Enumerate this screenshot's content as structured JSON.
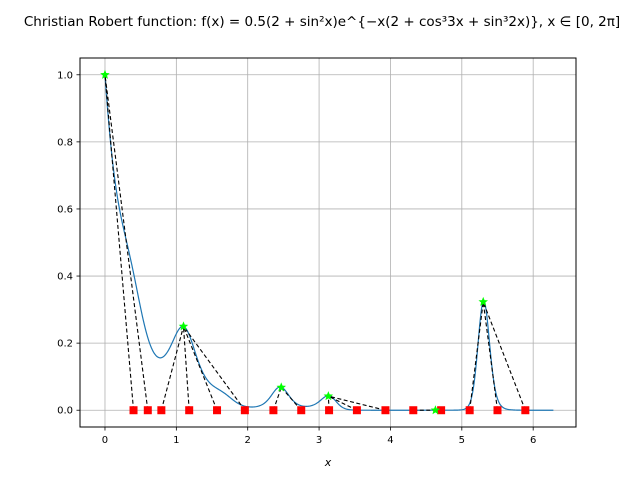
{
  "chart_data": {
    "type": "line",
    "title": "Christian Robert function: f(x) = 0.5(2 + sin²x)e^{−x(2 + cos³3x + sin³2x)}, x ∈ [0, 2π]",
    "xlabel": "x",
    "ylabel": "",
    "xlim": [
      -0.35,
      6.6
    ],
    "ylim": [
      -0.05,
      1.05
    ],
    "xticks": [
      0,
      1,
      2,
      3,
      4,
      5,
      6
    ],
    "yticks": [
      0.0,
      0.2,
      0.4,
      0.6,
      0.8,
      1.0
    ],
    "xtick_labels": [
      "0",
      "1",
      "2",
      "3",
      "4",
      "5",
      "6"
    ],
    "ytick_labels": [
      "0.0",
      "0.2",
      "0.4",
      "0.6",
      "0.8",
      "1.0"
    ],
    "grid": true,
    "colors": {
      "curve": "#1f77b4",
      "bracket_lines": "#000000",
      "samples": "#ff0000",
      "maxima": "#00ff00"
    },
    "series": [
      {
        "kind": "curve",
        "x_range": [
          0,
          6.283
        ],
        "points": 600
      },
      {
        "kind": "maxima-markers",
        "marker": "star",
        "points": [
          [
            0.0,
            1.0
          ],
          [
            1.1,
            0.25
          ],
          [
            2.47,
            0.068
          ],
          [
            3.13,
            0.042
          ],
          [
            4.63,
            0.0
          ],
          [
            5.3,
            0.323
          ]
        ]
      },
      {
        "kind": "sample-markers",
        "marker": "square",
        "x": [
          0.4,
          0.6,
          0.79,
          1.18,
          1.57,
          1.96,
          2.36,
          2.75,
          3.14,
          3.53,
          3.93,
          4.32,
          4.71,
          5.11,
          5.5,
          5.89
        ]
      },
      {
        "kind": "connector-lines",
        "style": "dashed",
        "segments": [
          [
            [
              0.4,
              0.0
            ],
            [
              0.0,
              1.0
            ]
          ],
          [
            [
              0.6,
              0.0
            ],
            [
              0.0,
              1.0
            ]
          ],
          [
            [
              0.79,
              0.0
            ],
            [
              1.1,
              0.25
            ]
          ],
          [
            [
              1.18,
              0.0
            ],
            [
              1.1,
              0.25
            ]
          ],
          [
            [
              1.57,
              0.0
            ],
            [
              1.1,
              0.25
            ]
          ],
          [
            [
              1.96,
              0.0
            ],
            [
              1.1,
              0.25
            ]
          ],
          [
            [
              2.36,
              0.0
            ],
            [
              2.47,
              0.068
            ]
          ],
          [
            [
              2.75,
              0.0
            ],
            [
              2.47,
              0.068
            ]
          ],
          [
            [
              3.14,
              0.0
            ],
            [
              3.13,
              0.042
            ]
          ],
          [
            [
              3.53,
              0.0
            ],
            [
              3.13,
              0.042
            ]
          ],
          [
            [
              3.93,
              0.0
            ],
            [
              3.13,
              0.042
            ]
          ],
          [
            [
              4.32,
              0.0
            ],
            [
              4.63,
              0.0
            ]
          ],
          [
            [
              4.71,
              0.0
            ],
            [
              4.63,
              0.0
            ]
          ],
          [
            [
              5.11,
              0.0
            ],
            [
              5.3,
              0.323
            ]
          ],
          [
            [
              5.5,
              0.0
            ],
            [
              5.3,
              0.323
            ]
          ],
          [
            [
              5.89,
              0.0
            ],
            [
              5.3,
              0.323
            ]
          ]
        ]
      }
    ]
  }
}
